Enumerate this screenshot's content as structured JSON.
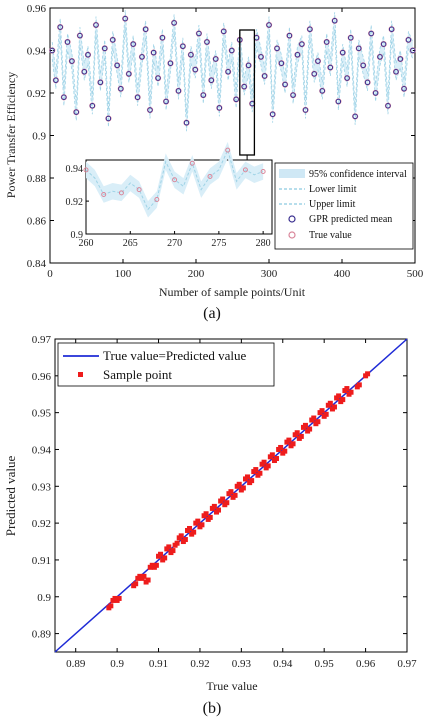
{
  "chart_data": [
    {
      "type": "line",
      "panel_caption": "(a)",
      "xlabel": "Number of sample points/Unit",
      "ylabel": "Power Transfer Efficiency",
      "xlim": [
        0,
        500
      ],
      "ylim": [
        0.84,
        0.96
      ],
      "xticks": [
        0,
        100,
        200,
        300,
        400,
        500
      ],
      "yticks": [
        0.84,
        0.86,
        0.88,
        0.9,
        0.92,
        0.94
      ],
      "ytick_labels": [
        "0.84",
        "0.86",
        "0.88",
        "0.9",
        "0.92",
        "0.94"
      ],
      "legend_position": "lower-right",
      "series": [
        {
          "name": "95% confidence interval",
          "style": "band",
          "color": "#cfe8f5"
        },
        {
          "name": "Lower limit",
          "style": "dashed",
          "color": "#9fd3e6"
        },
        {
          "name": "Upper limit",
          "style": "dashed",
          "color": "#9fd3e6"
        },
        {
          "name": "GPR predicted mean",
          "style": "circle-marker",
          "color": "#3a2f8f"
        },
        {
          "name": "True value",
          "style": "circle-marker",
          "color": "#d9869a"
        }
      ],
      "sample_points": {
        "x": [
          3,
          8,
          14,
          19,
          24,
          30,
          36,
          41,
          47,
          52,
          58,
          63,
          69,
          75,
          80,
          86,
          92,
          97,
          103,
          108,
          114,
          120,
          126,
          131,
          137,
          142,
          148,
          154,
          159,
          165,
          170,
          176,
          182,
          187,
          193,
          199,
          204,
          210,
          215,
          221,
          227,
          232,
          238,
          244,
          249,
          255,
          260,
          266,
          272,
          277,
          283,
          289,
          294,
          300,
          305,
          311,
          317,
          322,
          328,
          333,
          339,
          345,
          350,
          356,
          362,
          367,
          373,
          379,
          384,
          390,
          395,
          401,
          407,
          412,
          418,
          423,
          429,
          435,
          440,
          446,
          452,
          457,
          463,
          468,
          474,
          480,
          485,
          491,
          497
        ],
        "y": [
          0.94,
          0.926,
          0.951,
          0.918,
          0.944,
          0.935,
          0.911,
          0.947,
          0.93,
          0.938,
          0.914,
          0.952,
          0.925,
          0.941,
          0.908,
          0.945,
          0.933,
          0.922,
          0.955,
          0.929,
          0.943,
          0.918,
          0.937,
          0.95,
          0.912,
          0.939,
          0.927,
          0.946,
          0.916,
          0.934,
          0.953,
          0.921,
          0.942,
          0.906,
          0.938,
          0.931,
          0.948,
          0.919,
          0.944,
          0.926,
          0.936,
          0.913,
          0.949,
          0.93,
          0.94,
          0.917,
          0.945,
          0.923,
          0.933,
          0.915,
          0.946,
          0.937,
          0.928,
          0.952,
          0.91,
          0.941,
          0.934,
          0.924,
          0.947,
          0.919,
          0.938,
          0.943,
          0.912,
          0.95,
          0.929,
          0.935,
          0.921,
          0.944,
          0.932,
          0.954,
          0.916,
          0.939,
          0.927,
          0.946,
          0.909,
          0.941,
          0.933,
          0.925,
          0.948,
          0.92,
          0.937,
          0.943,
          0.914,
          0.95,
          0.93,
          0.936,
          0.922,
          0.945,
          0.94
        ]
      },
      "highlight_box_x": [
        260,
        280
      ],
      "inset": {
        "xlim": [
          260,
          281
        ],
        "ylim": [
          0.9,
          0.945
        ],
        "xticks": [
          260,
          265,
          270,
          275,
          280
        ],
        "yticks": [
          0.9,
          0.92,
          0.94
        ],
        "ytick_labels": [
          "0.9",
          "0.92",
          "0.94"
        ],
        "x": [
          260,
          261,
          262,
          263,
          264,
          265,
          266,
          267,
          268,
          269,
          270,
          271,
          272,
          273,
          274,
          275,
          276,
          277,
          278,
          279,
          280
        ],
        "y": [
          0.939,
          0.934,
          0.924,
          0.926,
          0.925,
          0.931,
          0.927,
          0.915,
          0.921,
          0.944,
          0.933,
          0.929,
          0.943,
          0.927,
          0.935,
          0.939,
          0.951,
          0.932,
          0.939,
          0.936,
          0.938
        ]
      }
    },
    {
      "type": "scatter",
      "panel_caption": "(b)",
      "xlabel": "True value",
      "ylabel": "Predicted value",
      "xlim": [
        0.885,
        0.97
      ],
      "ylim": [
        0.885,
        0.97
      ],
      "xticks": [
        0.89,
        0.9,
        0.91,
        0.92,
        0.93,
        0.94,
        0.95,
        0.96,
        0.97
      ],
      "xtick_labels": [
        "0.89",
        "0.9",
        "0.91",
        "0.92",
        "0.93",
        "0.94",
        "0.95",
        "0.96",
        "0.97"
      ],
      "yticks": [
        0.89,
        0.9,
        0.91,
        0.92,
        0.93,
        0.94,
        0.95,
        0.96,
        0.97
      ],
      "ytick_labels": [
        "0.89",
        "0.9",
        "0.91",
        "0.92",
        "0.93",
        "0.94",
        "0.95",
        "0.96",
        "0.97"
      ],
      "legend_position": "top-left",
      "series": [
        {
          "name": "True value=Predicted value",
          "style": "line",
          "color": "#1f2bd6"
        },
        {
          "name": "Sample point",
          "style": "square-marker",
          "color": "#ee1c1c"
        }
      ],
      "points": {
        "x": [
          0.898,
          0.899,
          0.9,
          0.904,
          0.905,
          0.906,
          0.907,
          0.908,
          0.909,
          0.91,
          0.911,
          0.912,
          0.913,
          0.914,
          0.915,
          0.916,
          0.917,
          0.918,
          0.919,
          0.92,
          0.921,
          0.922,
          0.923,
          0.924,
          0.925,
          0.926,
          0.927,
          0.928,
          0.929,
          0.93,
          0.931,
          0.932,
          0.933,
          0.934,
          0.935,
          0.936,
          0.937,
          0.938,
          0.939,
          0.94,
          0.941,
          0.942,
          0.943,
          0.944,
          0.945,
          0.946,
          0.947,
          0.948,
          0.949,
          0.95,
          0.951,
          0.952,
          0.953,
          0.954,
          0.955,
          0.956,
          0.958,
          0.96
        ],
        "y": [
          0.897,
          0.899,
          0.899,
          0.903,
          0.905,
          0.905,
          0.904,
          0.908,
          0.908,
          0.911,
          0.91,
          0.913,
          0.912,
          0.914,
          0.916,
          0.915,
          0.918,
          0.917,
          0.92,
          0.919,
          0.922,
          0.921,
          0.924,
          0.923,
          0.926,
          0.925,
          0.928,
          0.927,
          0.93,
          0.929,
          0.932,
          0.931,
          0.934,
          0.933,
          0.936,
          0.935,
          0.938,
          0.937,
          0.94,
          0.939,
          0.942,
          0.941,
          0.944,
          0.943,
          0.946,
          0.945,
          0.948,
          0.947,
          0.95,
          0.949,
          0.952,
          0.951,
          0.954,
          0.953,
          0.956,
          0.955,
          0.957,
          0.96
        ]
      }
    }
  ]
}
